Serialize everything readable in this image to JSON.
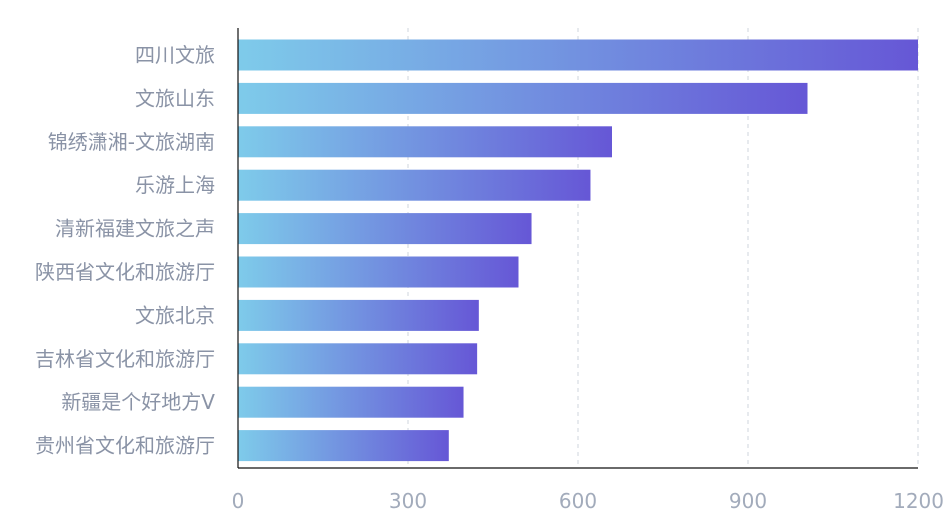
{
  "chart_data": {
    "type": "bar",
    "orientation": "horizontal",
    "categories": [
      "四川文旅",
      "文旅山东",
      "锦绣潇湘-文旅湖南",
      "乐游上海",
      "清新福建文旅之声",
      "陕西省文化和旅游厅",
      "文旅北京",
      "吉林省文化和旅游厅",
      "新疆是个好地方V",
      "贵州省文化和旅游厅"
    ],
    "values": [
      1200,
      1005,
      660,
      622,
      518,
      495,
      425,
      422,
      398,
      372
    ],
    "xlim": [
      0,
      1200
    ],
    "xticks": [
      0,
      300,
      600,
      900,
      1200
    ],
    "xtick_labels": [
      "0",
      "300",
      "600",
      "900",
      "1200"
    ],
    "grid": "vertical-dashed",
    "colors": {
      "bar_start": "#7ecbea",
      "bar_end": "#6657d6",
      "grid": "#cfd4dc",
      "axis": "#111111",
      "category_text": "#8a93a6",
      "tick_text": "#a2abbb"
    }
  }
}
